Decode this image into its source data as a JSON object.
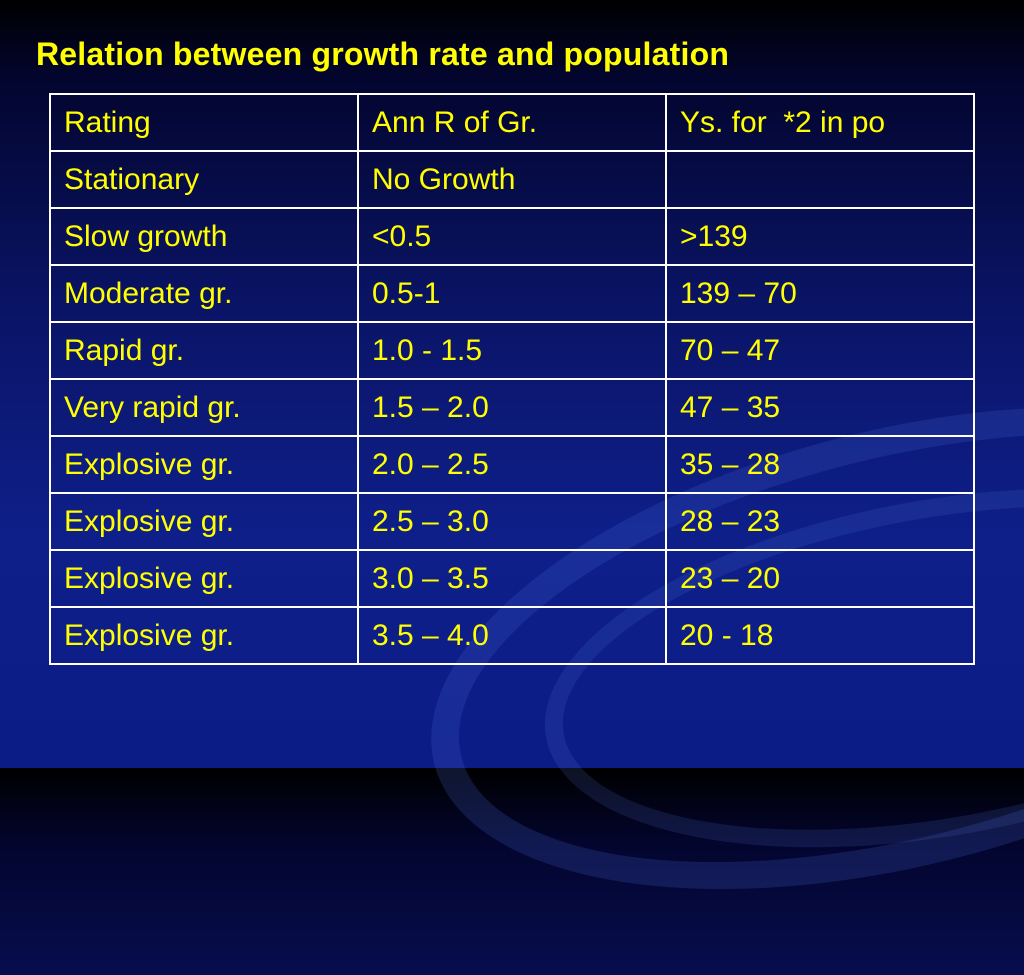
{
  "slide": {
    "title": "Relation between growth rate and population"
  },
  "table": {
    "header": [
      "Rating",
      "Ann R of Gr.",
      "Ys. for  *2 in po"
    ],
    "rows": [
      [
        "Stationary",
        "No Growth",
        ""
      ],
      [
        "Slow growth",
        "<0.5",
        ">139"
      ],
      [
        "Moderate gr.",
        "0.5-1",
        "139 – 70"
      ],
      [
        "Rapid gr.",
        "1.0 - 1.5",
        "70 – 47"
      ],
      [
        "Very rapid gr.",
        "1.5 – 2.0",
        "47 – 35"
      ],
      [
        "Explosive gr.",
        "2.0 – 2.5",
        "35 – 28"
      ],
      [
        "Explosive gr.",
        "2.5 – 3.0",
        "28 – 23"
      ],
      [
        "Explosive gr.",
        "3.0 – 3.5",
        "23 – 20"
      ],
      [
        "Explosive gr.",
        "3.5 – 4.0",
        "20 - 18"
      ]
    ]
  },
  "colors": {
    "text": "#ffff00",
    "border": "#ffffff",
    "background": "#0e1f8a"
  }
}
